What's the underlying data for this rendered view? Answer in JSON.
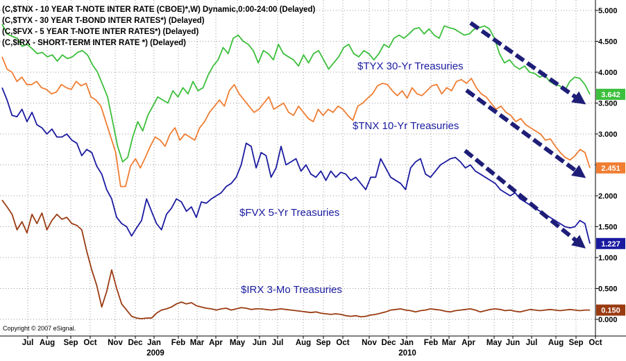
{
  "header": {
    "lines": [
      "(C,$TNX - 10 YEAR T-NOTE INTER RATE (CBOE)*,W) Dynamic,0:00-24:00 (Delayed)",
      "(C,$TYX - 30 YEAR T-BOND INTER RATES*)  (Delayed)",
      "(C,$FVX - 5 YEAR T-NOTE INTER RATES*)  (Delayed)",
      "(C,$IRX - SHORT-TERM INTER RATE *)  (Delayed)"
    ]
  },
  "copyright": "Copyright © 2007 eSignal.",
  "annotations": {
    "tyx": "$TYX 30-Yr Treasuries",
    "tnx": "$TNX 10-Yr Treasuries",
    "fvx": "$FVX 5-Yr Treasuries",
    "irx": "$IRX 3-Mo Treasuries"
  },
  "colors": {
    "tyx": "#3cbf3c",
    "tnx": "#f07d32",
    "fvx": "#1a1aa0",
    "irx": "#9a3b12",
    "arrow": "#1e1e78",
    "grid": "#9a9a9a"
  },
  "chart_data": {
    "type": "line",
    "title": "",
    "xlabel": "",
    "ylabel": "",
    "ylim": [
      0,
      5
    ],
    "y_ticks": [
      "0.000",
      "0.500",
      "1.000",
      "1.500",
      "2.000",
      "2.500",
      "3.000",
      "3.500",
      "4.000",
      "4.500",
      "5.000"
    ],
    "x_ticks": [
      "Jul",
      "Aug",
      "Sep",
      "Oct",
      "Nov",
      "Dec",
      "Jan",
      "Feb",
      "Mar",
      "Apr",
      "May",
      "Jun",
      "Jul",
      "Aug",
      "Sep",
      "Oct",
      "Nov",
      "Dec",
      "Jan",
      "Feb",
      "Mar",
      "Apr",
      "May",
      "Jun",
      "Jul",
      "Aug",
      "Sep",
      "Oct"
    ],
    "year_labels": [
      "2009",
      "2010"
    ],
    "period": "weekly, Jul 2008 - Oct 2010",
    "grid": true,
    "last_values": {
      "tyx": "3.642",
      "tnx": "2.451",
      "fvx": "1.227",
      "irx": "0.150"
    },
    "series": [
      {
        "key": "tyx",
        "values": [
          4.78,
          4.62,
          4.58,
          4.55,
          4.42,
          4.45,
          4.38,
          4.3,
          4.32,
          4.25,
          4.28,
          4.18,
          4.28,
          4.22,
          4.25,
          4.32,
          4.35,
          4.28,
          4.12,
          4.0,
          3.8,
          3.6,
          3.2,
          2.8,
          2.55,
          2.62,
          2.95,
          3.2,
          3.05,
          3.3,
          3.45,
          3.6,
          3.55,
          3.5,
          3.7,
          3.6,
          3.75,
          3.65,
          3.85,
          3.7,
          3.75,
          3.95,
          4.1,
          4.2,
          4.4,
          4.3,
          4.55,
          4.6,
          4.5,
          4.45,
          4.35,
          4.15,
          4.35,
          4.3,
          4.2,
          4.45,
          4.3,
          4.25,
          4.2,
          4.1,
          4.28,
          4.15,
          4.3,
          4.35,
          4.2,
          4.05,
          4.15,
          4.25,
          4.4,
          4.45,
          4.3,
          4.25,
          4.35,
          4.3,
          4.2,
          4.3,
          4.45,
          4.4,
          4.55,
          4.6,
          4.55,
          4.62,
          4.7,
          4.72,
          4.62,
          4.7,
          4.6,
          4.55,
          4.75,
          4.72,
          4.7,
          4.65,
          4.6,
          4.62,
          4.7,
          4.72,
          4.75,
          4.7,
          4.55,
          4.3,
          4.15,
          4.2,
          4.1,
          4.05,
          4.1,
          4.0,
          3.98,
          3.92,
          3.95,
          3.85,
          3.8,
          3.78,
          3.7,
          3.85,
          3.92,
          3.9,
          3.8,
          3.642
        ]
      },
      {
        "key": "tnx",
        "values": [
          4.25,
          4.05,
          4.0,
          3.85,
          3.92,
          3.8,
          3.8,
          3.85,
          3.75,
          3.72,
          3.65,
          3.68,
          3.8,
          3.75,
          3.72,
          3.85,
          3.78,
          3.82,
          3.6,
          3.55,
          3.45,
          3.2,
          2.95,
          2.7,
          2.15,
          2.15,
          2.48,
          2.6,
          2.45,
          2.62,
          2.8,
          2.95,
          2.9,
          2.8,
          3.0,
          3.1,
          2.9,
          3.0,
          2.95,
          2.9,
          3.1,
          3.2,
          3.35,
          3.45,
          3.55,
          3.45,
          3.7,
          3.8,
          3.65,
          3.55,
          3.45,
          3.35,
          3.4,
          3.5,
          3.6,
          3.4,
          3.45,
          3.5,
          3.35,
          3.3,
          3.45,
          3.35,
          3.25,
          3.2,
          3.4,
          3.3,
          3.4,
          3.35,
          3.45,
          3.4,
          3.3,
          3.22,
          3.45,
          3.5,
          3.58,
          3.65,
          3.78,
          3.82,
          3.8,
          3.7,
          3.62,
          3.7,
          3.58,
          3.75,
          3.65,
          3.62,
          3.7,
          3.78,
          3.8,
          3.65,
          3.75,
          3.7,
          3.85,
          3.88,
          3.82,
          3.9,
          3.75,
          3.65,
          3.6,
          3.5,
          3.4,
          3.45,
          3.35,
          3.3,
          3.2,
          3.25,
          3.15,
          3.1,
          3.05,
          3.0,
          2.9,
          2.92,
          2.8,
          2.7,
          2.62,
          2.58,
          2.65,
          2.75,
          2.7,
          2.451
        ]
      },
      {
        "key": "fvx",
        "values": [
          3.75,
          3.55,
          3.3,
          3.28,
          3.4,
          3.2,
          3.35,
          3.15,
          3.1,
          3.0,
          3.08,
          2.95,
          2.95,
          3.0,
          2.9,
          2.85,
          2.65,
          2.75,
          2.7,
          2.48,
          2.35,
          2.1,
          1.95,
          1.65,
          1.55,
          1.5,
          1.35,
          1.48,
          1.6,
          1.95,
          1.75,
          1.55,
          1.45,
          1.7,
          1.8,
          1.95,
          1.9,
          1.75,
          1.82,
          1.65,
          1.9,
          1.88,
          1.95,
          2.0,
          2.05,
          2.15,
          2.2,
          2.3,
          2.5,
          2.85,
          2.8,
          2.45,
          2.7,
          2.65,
          2.3,
          2.45,
          2.8,
          2.5,
          2.55,
          2.6,
          2.4,
          2.5,
          2.35,
          2.3,
          2.4,
          2.25,
          2.4,
          2.3,
          2.38,
          2.35,
          2.25,
          2.3,
          2.2,
          2.1,
          2.3,
          2.3,
          2.6,
          2.45,
          2.3,
          2.25,
          2.2,
          2.1,
          2.45,
          2.55,
          2.6,
          2.35,
          2.3,
          2.4,
          2.5,
          2.55,
          2.6,
          2.62,
          2.55,
          2.45,
          2.5,
          2.4,
          2.35,
          2.3,
          2.25,
          2.2,
          2.1,
          2.05,
          2.0,
          2.05,
          1.95,
          1.9,
          1.85,
          1.8,
          1.75,
          1.7,
          1.65,
          1.6,
          1.55,
          1.5,
          1.48,
          1.5,
          1.6,
          1.55,
          1.227
        ]
      },
      {
        "key": "irx",
        "values": [
          1.93,
          1.82,
          1.7,
          1.45,
          1.58,
          1.4,
          1.7,
          1.55,
          1.72,
          1.45,
          1.6,
          1.7,
          1.62,
          1.65,
          1.55,
          1.52,
          1.45,
          1.1,
          0.8,
          0.55,
          0.2,
          0.45,
          0.8,
          0.5,
          0.25,
          0.15,
          0.05,
          0.02,
          0.01,
          0.02,
          0.02,
          0.1,
          0.15,
          0.17,
          0.2,
          0.25,
          0.28,
          0.25,
          0.27,
          0.22,
          0.2,
          0.18,
          0.17,
          0.15,
          0.17,
          0.18,
          0.15,
          0.17,
          0.19,
          0.18,
          0.16,
          0.17,
          0.17,
          0.16,
          0.15,
          0.16,
          0.17,
          0.16,
          0.15,
          0.14,
          0.13,
          0.12,
          0.11,
          0.12,
          0.1,
          0.09,
          0.08,
          0.09,
          0.08,
          0.06,
          0.05,
          0.06,
          0.04,
          0.05,
          0.07,
          0.08,
          0.1,
          0.12,
          0.15,
          0.16,
          0.17,
          0.15,
          0.14,
          0.12,
          0.14,
          0.15,
          0.17,
          0.16,
          0.15,
          0.13,
          0.12,
          0.14,
          0.15,
          0.16,
          0.17,
          0.15,
          0.12,
          0.14,
          0.16,
          0.17,
          0.16,
          0.14,
          0.15,
          0.13,
          0.12,
          0.14,
          0.16,
          0.15,
          0.14,
          0.15,
          0.16,
          0.15,
          0.14,
          0.15,
          0.16,
          0.15,
          0.14,
          0.15,
          0.15
        ]
      }
    ]
  }
}
